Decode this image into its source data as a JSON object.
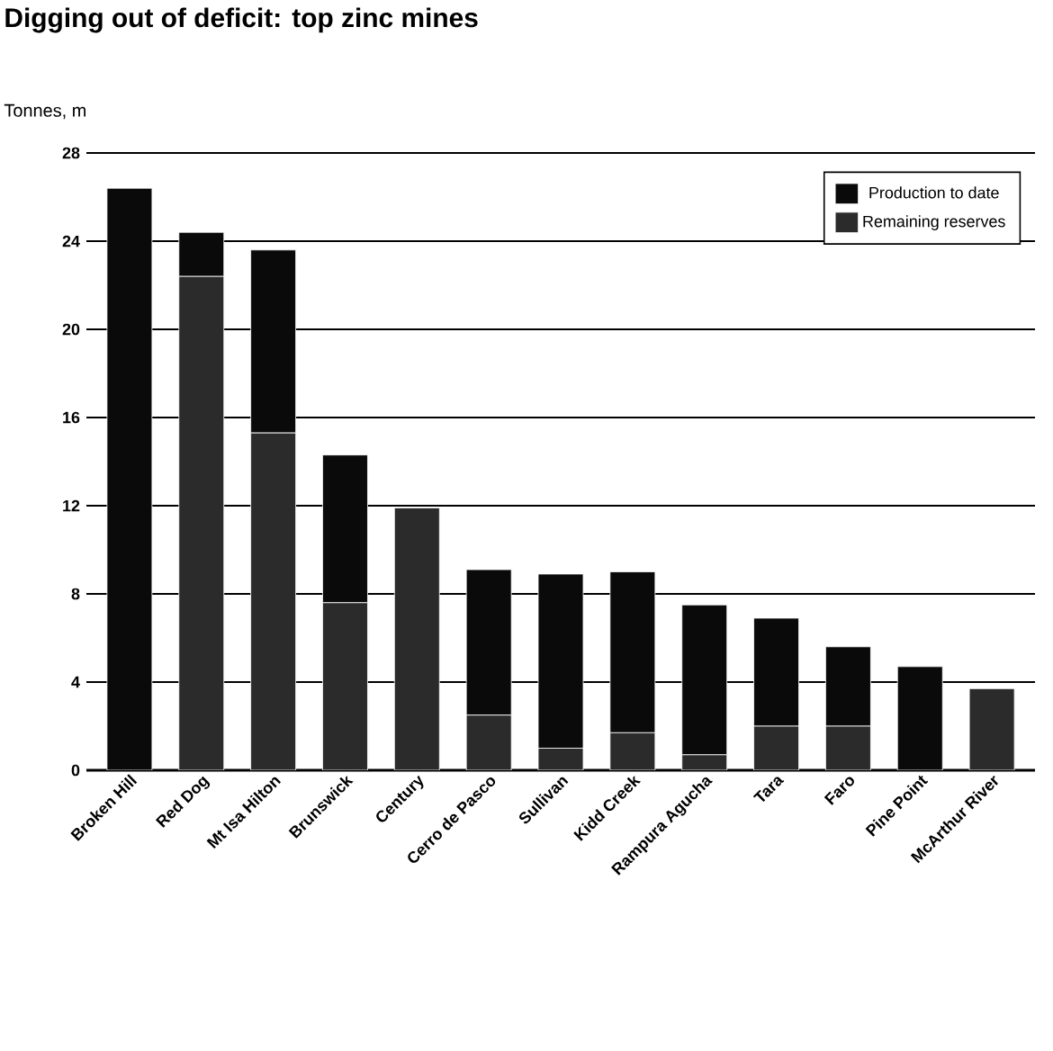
{
  "chart_data": {
    "type": "bar",
    "title": "Digging out of deficit: top zinc mines",
    "ylabel": "Tonnes, m",
    "categories": [
      "Broken Hill",
      "Red Dog",
      "Mt Isa Hilton",
      "Brunswick",
      "Century",
      "Cerro de Pasco",
      "Sullivan",
      "Kidd Creek",
      "Rampura Agucha",
      "Tara",
      "Faro",
      "Pine Point",
      "McArthur River"
    ],
    "series": [
      {
        "name": "Remaining reserves",
        "color": "#2b2b2b",
        "values": [
          0,
          22.4,
          15.3,
          7.6,
          11.9,
          2.5,
          1.0,
          1.7,
          0.7,
          2.0,
          2.0,
          0,
          3.7
        ]
      },
      {
        "name": "Production to date",
        "color": "#0a0a0a",
        "values": [
          26.4,
          2.0,
          8.3,
          6.7,
          0,
          6.6,
          7.9,
          7.3,
          6.8,
          4.9,
          3.6,
          4.7,
          0
        ]
      }
    ],
    "stacked": true,
    "ylim": [
      0,
      28
    ],
    "yticks": [
      0,
      4,
      8,
      12,
      16,
      20,
      24,
      28
    ],
    "grid": "y",
    "legend": "top right"
  }
}
